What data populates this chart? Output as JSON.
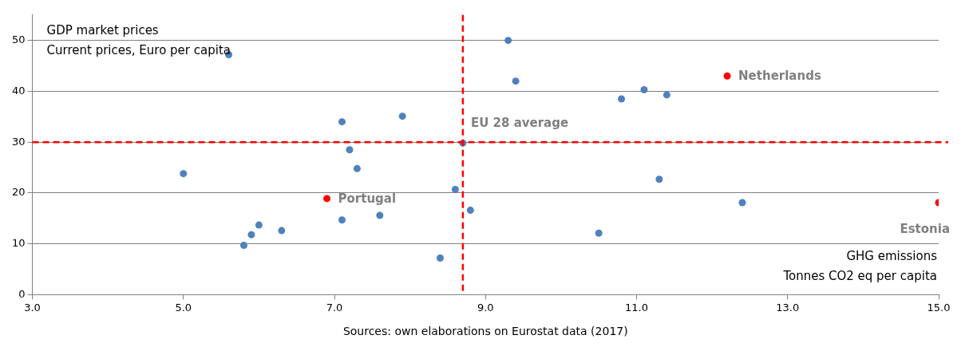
{
  "chart_data": {
    "type": "scatter",
    "xlabel": "GHG emissions\nTonnes CO2 eq per capita",
    "ylabel": "GDP market prices\nCurrent prices, Euro per capita",
    "x": [
      5.6,
      5.0,
      7.1,
      7.2,
      7.3,
      7.9,
      8.7,
      9.3,
      9.4,
      10.8,
      11.1,
      11.4,
      12.2,
      6.9,
      5.8,
      5.9,
      6.0,
      6.3,
      7.1,
      7.6,
      8.4,
      8.6,
      8.8,
      10.5,
      11.3,
      12.4,
      15.0
    ],
    "values": [
      47.2,
      23.8,
      34.0,
      28.5,
      24.8,
      35.1,
      29.8,
      50.0,
      42.0,
      38.5,
      40.3,
      39.3,
      43.0,
      18.9,
      9.7,
      11.8,
      13.7,
      12.6,
      14.7,
      15.6,
      7.2,
      20.7,
      16.6,
      12.1,
      22.7,
      18.1,
      18.1
    ],
    "colors": [
      "#4f81bd",
      "#4f81bd",
      "#4f81bd",
      "#4f81bd",
      "#4f81bd",
      "#4f81bd",
      "#4f81bd",
      "#4f81bd",
      "#4f81bd",
      "#4f81bd",
      "#4f81bd",
      "#4f81bd",
      "#ff0000",
      "#ff0000",
      "#4f81bd",
      "#4f81bd",
      "#4f81bd",
      "#4f81bd",
      "#4f81bd",
      "#4f81bd",
      "#4f81bd",
      "#4f81bd",
      "#4f81bd",
      "#4f81bd",
      "#4f81bd",
      "#4f81bd",
      "#ff0000"
    ],
    "marker": "circle",
    "xlim": [
      3,
      15
    ],
    "xticks": [
      {
        "value": 3,
        "label": "3.0"
      },
      {
        "value": 5,
        "label": "5.0"
      },
      {
        "value": 7,
        "label": "7.0"
      },
      {
        "value": 9,
        "label": "9.0"
      },
      {
        "value": 11,
        "label": "11.0"
      },
      {
        "value": 13,
        "label": "13.0"
      },
      {
        "value": 15,
        "label": "15.0"
      }
    ],
    "ylim": [
      0,
      55
    ],
    "yticks": [
      0,
      10,
      20,
      30,
      40,
      50
    ],
    "grid": "y",
    "legend": false,
    "ref_lines": [
      {
        "axis": "x",
        "value": 8.7,
        "label": "EU 28 average",
        "color": "#ff0000",
        "line_style": "dashed"
      },
      {
        "axis": "y",
        "value": 30,
        "color": "#ff0000",
        "line_style": "dashed"
      }
    ],
    "annotations": [
      {
        "text": "Netherlands",
        "x": 12.2,
        "y": 43.0
      },
      {
        "text": "Portugal",
        "x": 6.9,
        "y": 18.9
      },
      {
        "text": "Estonia",
        "x": 15.0,
        "y": 18.1
      },
      "Sources: own elaborations on Eurostat data (2017)"
    ]
  }
}
